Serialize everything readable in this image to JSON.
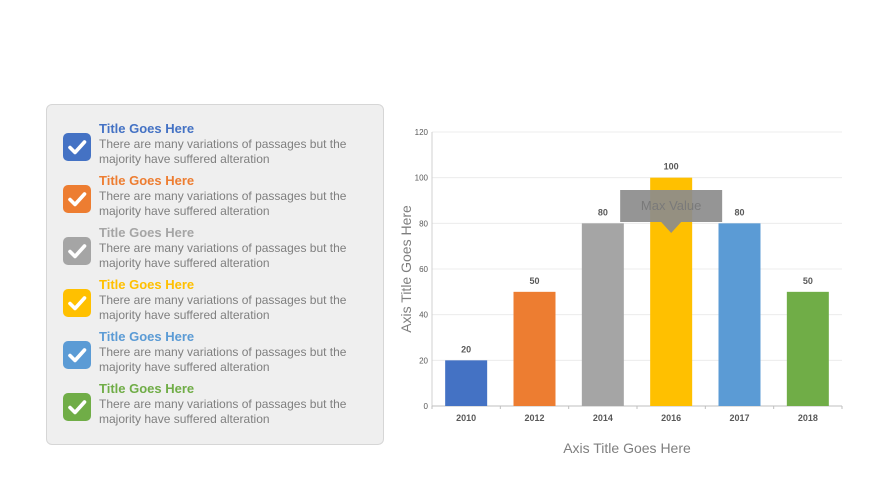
{
  "list": {
    "items": [
      {
        "title": "Title Goes Here",
        "desc": "There are many variations of passages but the majority have  suffered alteration",
        "color": "#4472c4"
      },
      {
        "title": "Title Goes Here",
        "desc": "There are many variations of passages but the majority have  suffered alteration",
        "color": "#ed7d31"
      },
      {
        "title": "Title Goes Here",
        "desc": "There are many variations of passages but the majority have  suffered alteration",
        "color": "#a5a5a5"
      },
      {
        "title": "Title Goes Here",
        "desc": "There are many variations of passages but the majority have  suffered alteration",
        "color": "#ffc000"
      },
      {
        "title": "Title Goes Here",
        "desc": "There are many variations of passages but the majority have  suffered alteration",
        "color": "#5b9bd5"
      },
      {
        "title": "Title Goes Here",
        "desc": "There are many variations of passages but the majority have  suffered alteration",
        "color": "#70ad47"
      }
    ],
    "check_icon": "checkmark-icon"
  },
  "chart_data": {
    "type": "bar",
    "categories": [
      "2010",
      "2012",
      "2014",
      "2016",
      "2017",
      "2018"
    ],
    "values": [
      20,
      50,
      80,
      100,
      80,
      50
    ],
    "colors": [
      "#4472c4",
      "#ed7d31",
      "#a5a5a5",
      "#ffc000",
      "#5b9bd5",
      "#70ad47"
    ],
    "ylim": [
      0,
      120
    ],
    "yticks": [
      0,
      20,
      40,
      60,
      80,
      100,
      120
    ],
    "xlabel": "Axis Title Goes Here",
    "ylabel": "Axis Title Goes Here",
    "grid": true,
    "annotation": {
      "text": "Max Value",
      "category": "2016"
    }
  }
}
